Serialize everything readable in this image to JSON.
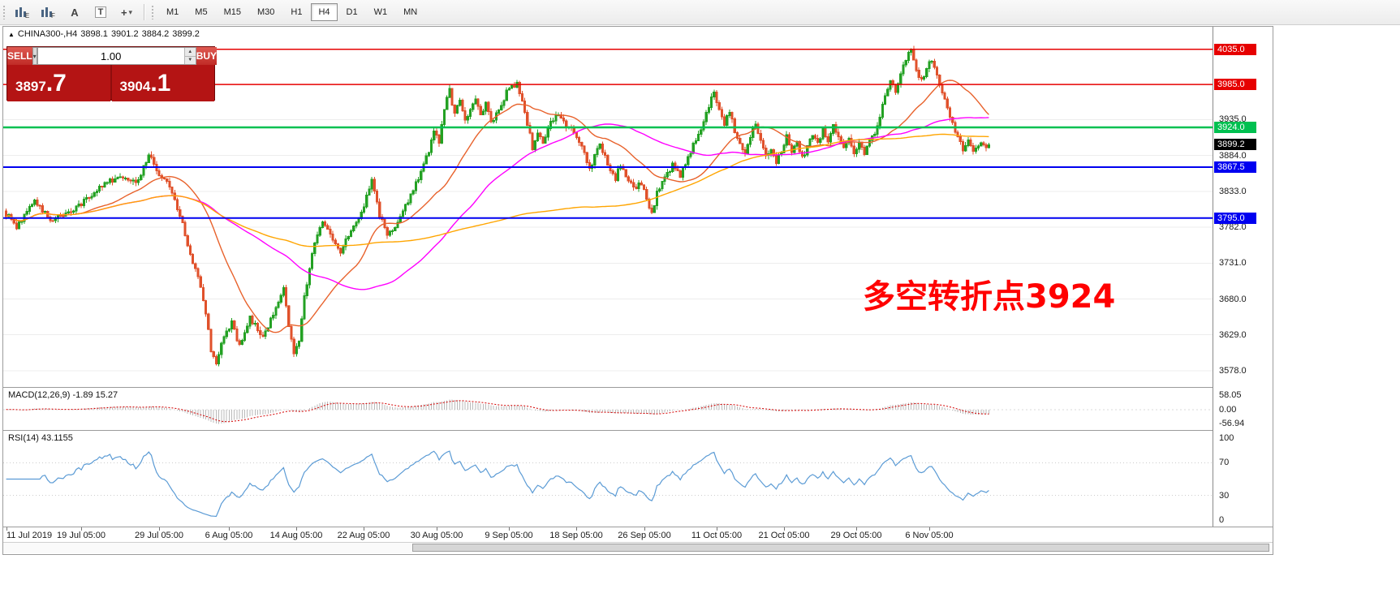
{
  "toolbar": {
    "tools": [
      {
        "name": "candlestick-chart-icon",
        "type": "bars",
        "badge": "E"
      },
      {
        "name": "bar-chart-icon",
        "type": "bars",
        "badge": "F"
      },
      {
        "name": "font-tool-icon",
        "type": "glyph",
        "glyph": "A"
      },
      {
        "name": "text-label-tool-icon",
        "type": "glyph",
        "glyph": "T",
        "boxed": true
      },
      {
        "name": "crosshair-tool-icon",
        "type": "glyph",
        "glyph": "+",
        "dropdown": true
      }
    ],
    "timeframes": [
      {
        "label": "M1",
        "active": false
      },
      {
        "label": "M5",
        "active": false
      },
      {
        "label": "M15",
        "active": false
      },
      {
        "label": "M30",
        "active": false
      },
      {
        "label": "H1",
        "active": false
      },
      {
        "label": "H4",
        "active": true
      },
      {
        "label": "D1",
        "active": false
      },
      {
        "label": "W1",
        "active": false
      },
      {
        "label": "MN",
        "active": false
      }
    ]
  },
  "ohlc_header": {
    "symbol": "CHINA300-,H4",
    "open": "3898.1",
    "high": "3901.2",
    "low": "3884.2",
    "close": "3899.2"
  },
  "trade_panel": {
    "sell_label": "SELL",
    "buy_label": "BUY",
    "volume": "1.00",
    "sell_price": {
      "value": "3897.7",
      "main": "3897",
      "big": ".7"
    },
    "buy_price": {
      "value": "3904.1",
      "main": "3904",
      "big": ".1"
    }
  },
  "annotation": {
    "text": "多空转折点3924",
    "color": "#FF0000"
  },
  "chart_data": {
    "type": "candlestick",
    "symbol": "CHINA300-",
    "timeframe": "H4",
    "open": 3898.1,
    "high": 3901.2,
    "low": 3884.2,
    "close": 3899.2,
    "last_close": 3899.2,
    "y_range": [
      3556,
      4067
    ],
    "y_axis_ticks": [
      3935.0,
      3884.0,
      3833.0,
      3782.0,
      3731.0,
      3680.0,
      3629.0,
      3578.0
    ],
    "candle_count": 380,
    "up_color": "#23a123",
    "down_color": "#e0512b",
    "price_path_anchors": [
      [
        0,
        3805
      ],
      [
        5,
        3782
      ],
      [
        12,
        3820
      ],
      [
        18,
        3792
      ],
      [
        25,
        3802
      ],
      [
        30,
        3816
      ],
      [
        38,
        3842
      ],
      [
        45,
        3856
      ],
      [
        52,
        3848
      ],
      [
        56,
        3886
      ],
      [
        59,
        3862
      ],
      [
        64,
        3840
      ],
      [
        68,
        3800
      ],
      [
        72,
        3742
      ],
      [
        76,
        3700
      ],
      [
        78,
        3662
      ],
      [
        80,
        3606
      ],
      [
        82,
        3586
      ],
      [
        85,
        3630
      ],
      [
        88,
        3645
      ],
      [
        91,
        3614
      ],
      [
        95,
        3652
      ],
      [
        100,
        3626
      ],
      [
        105,
        3666
      ],
      [
        108,
        3692
      ],
      [
        110,
        3642
      ],
      [
        112,
        3606
      ],
      [
        114,
        3622
      ],
      [
        116,
        3682
      ],
      [
        120,
        3762
      ],
      [
        123,
        3792
      ],
      [
        126,
        3772
      ],
      [
        130,
        3744
      ],
      [
        134,
        3780
      ],
      [
        138,
        3802
      ],
      [
        142,
        3846
      ],
      [
        145,
        3800
      ],
      [
        148,
        3768
      ],
      [
        152,
        3790
      ],
      [
        155,
        3812
      ],
      [
        158,
        3836
      ],
      [
        161,
        3862
      ],
      [
        164,
        3892
      ],
      [
        166,
        3922
      ],
      [
        168,
        3902
      ],
      [
        170,
        3952
      ],
      [
        172,
        3976
      ],
      [
        174,
        3942
      ],
      [
        176,
        3962
      ],
      [
        178,
        3932
      ],
      [
        180,
        3952
      ],
      [
        182,
        3966
      ],
      [
        184,
        3942
      ],
      [
        186,
        3956
      ],
      [
        188,
        3932
      ],
      [
        191,
        3946
      ],
      [
        194,
        3976
      ],
      [
        198,
        3986
      ],
      [
        200,
        3960
      ],
      [
        202,
        3930
      ],
      [
        204,
        3896
      ],
      [
        206,
        3916
      ],
      [
        208,
        3902
      ],
      [
        210,
        3922
      ],
      [
        213,
        3942
      ],
      [
        216,
        3930
      ],
      [
        220,
        3918
      ],
      [
        224,
        3890
      ],
      [
        226,
        3862
      ],
      [
        228,
        3882
      ],
      [
        230,
        3902
      ],
      [
        233,
        3872
      ],
      [
        236,
        3852
      ],
      [
        238,
        3872
      ],
      [
        240,
        3856
      ],
      [
        243,
        3836
      ],
      [
        246,
        3846
      ],
      [
        248,
        3820
      ],
      [
        250,
        3800
      ],
      [
        252,
        3830
      ],
      [
        255,
        3850
      ],
      [
        258,
        3870
      ],
      [
        261,
        3856
      ],
      [
        264,
        3882
      ],
      [
        267,
        3906
      ],
      [
        270,
        3932
      ],
      [
        272,
        3956
      ],
      [
        274,
        3976
      ],
      [
        276,
        3950
      ],
      [
        278,
        3930
      ],
      [
        280,
        3944
      ],
      [
        282,
        3920
      ],
      [
        284,
        3898
      ],
      [
        286,
        3890
      ],
      [
        288,
        3912
      ],
      [
        290,
        3932
      ],
      [
        292,
        3906
      ],
      [
        294,
        3880
      ],
      [
        296,
        3896
      ],
      [
        298,
        3876
      ],
      [
        300,
        3890
      ],
      [
        302,
        3910
      ],
      [
        304,
        3890
      ],
      [
        306,
        3906
      ],
      [
        308,
        3880
      ],
      [
        310,
        3896
      ],
      [
        312,
        3916
      ],
      [
        314,
        3900
      ],
      [
        316,
        3920
      ],
      [
        318,
        3906
      ],
      [
        320,
        3926
      ],
      [
        322,
        3910
      ],
      [
        324,
        3894
      ],
      [
        326,
        3906
      ],
      [
        328,
        3890
      ],
      [
        330,
        3900
      ],
      [
        332,
        3886
      ],
      [
        334,
        3902
      ],
      [
        336,
        3916
      ],
      [
        338,
        3942
      ],
      [
        340,
        3966
      ],
      [
        342,
        3990
      ],
      [
        344,
        3976
      ],
      [
        346,
        4002
      ],
      [
        348,
        4020
      ],
      [
        350,
        4034
      ],
      [
        352,
        4006
      ],
      [
        354,
        3990
      ],
      [
        356,
        4010
      ],
      [
        358,
        4022
      ],
      [
        360,
        3996
      ],
      [
        362,
        3976
      ],
      [
        364,
        3950
      ],
      [
        366,
        3930
      ],
      [
        368,
        3910
      ],
      [
        370,
        3894
      ],
      [
        372,
        3906
      ],
      [
        374,
        3890
      ],
      [
        376,
        3900
      ],
      [
        379,
        3899
      ]
    ],
    "levels": [
      {
        "price": 4035.0,
        "label": "4035.0",
        "color": "#e60000",
        "role": "resistance"
      },
      {
        "price": 3985.0,
        "label": "3985.0",
        "color": "#e60000",
        "role": "resistance"
      },
      {
        "price": 3924.0,
        "label": "3924.0",
        "color": "#00c050",
        "role": "pivot"
      },
      {
        "price": 3867.5,
        "label": "3867.5",
        "color": "#0000f0",
        "role": "support"
      },
      {
        "price": 3795.0,
        "label": "3795.0",
        "color": "#0000f0",
        "role": "support"
      }
    ],
    "current_price": {
      "price": 3899.2,
      "label": "3899.2",
      "bg": "#000000"
    },
    "moving_averages": [
      {
        "period": 28,
        "color": "#e8622c"
      },
      {
        "period": 72,
        "color": "#ff00ff"
      },
      {
        "period": 170,
        "color": "#ffa500"
      }
    ],
    "time_axis": [
      {
        "label": "11 Jul 2019",
        "i": 0
      },
      {
        "label": "19 Jul 05:00",
        "i": 29
      },
      {
        "label": "29 Jul 05:00",
        "i": 59
      },
      {
        "label": "6 Aug 05:00",
        "i": 86
      },
      {
        "label": "14 Aug 05:00",
        "i": 112
      },
      {
        "label": "22 Aug 05:00",
        "i": 138
      },
      {
        "label": "30 Aug 05:00",
        "i": 166
      },
      {
        "label": "9 Sep 05:00",
        "i": 194
      },
      {
        "label": "18 Sep 05:00",
        "i": 220
      },
      {
        "label": "26 Sep 05:00",
        "i": 246
      },
      {
        "label": "11 Oct 05:00",
        "i": 274
      },
      {
        "label": "21 Oct 05:00",
        "i": 300
      },
      {
        "label": "29 Oct 05:00",
        "i": 328
      },
      {
        "label": "6 Nov 05:00",
        "i": 356
      }
    ],
    "indicators": {
      "macd": {
        "label": "MACD(12,26,9)",
        "value_text": "-1.89 15.27",
        "fast": 12,
        "slow": 26,
        "signal": 9,
        "axis_ticks": [
          {
            "v": 58.05,
            "label": "58.05"
          },
          {
            "v": 0,
            "label": "0.00"
          },
          {
            "v": -56.94,
            "label": "-56.94"
          }
        ],
        "range": [
          -80,
          85
        ],
        "histogram_color": "#b9b9b9",
        "signal_color": "#d40000"
      },
      "rsi": {
        "label": "RSI(14)",
        "value_text": "43.1155",
        "period": 14,
        "axis_ticks": [
          {
            "v": 100,
            "label": "100"
          },
          {
            "v": 70,
            "label": "70"
          },
          {
            "v": 30,
            "label": "30"
          },
          {
            "v": 0,
            "label": "0"
          }
        ],
        "range": [
          -8,
          108
        ],
        "line_color": "#5b9bd5",
        "levels": [
          70,
          30
        ]
      }
    }
  }
}
